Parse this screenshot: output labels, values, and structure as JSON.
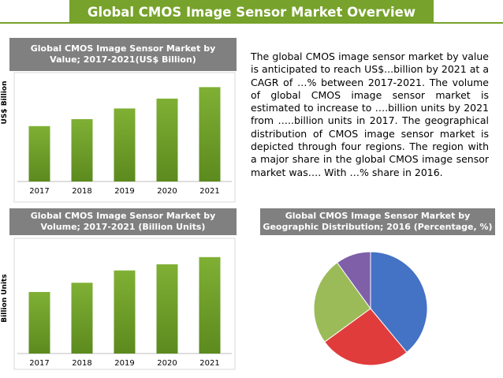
{
  "header": {
    "title": "Global CMOS Image Sensor Market Overview"
  },
  "colors": {
    "banner": "#77a22b",
    "title_box": "#808080",
    "bar": "#77a22b"
  },
  "description": "The global CMOS image sensor market by value is anticipated to reach US$...billion by 2021 at a CAGR of …% between 2017-2021. The volume of global CMOS image sensor market is estimated to increase to ….billion units by 2021 from …..billion units in 2017. The geographical distribution of CMOS image sensor market is depicted through four regions. The region with a major share in the global CMOS image sensor market was…. With …% share in 2016.",
  "chart_data": [
    {
      "type": "bar",
      "title_lines": [
        "Global CMOS Image Sensor Market by",
        "Value; 2017-2021(US$ Billion)"
      ],
      "ylabel": "US$ Billion",
      "categories": [
        "2017",
        "2018",
        "2019",
        "2020",
        "2021"
      ],
      "values": [
        13.5,
        15.2,
        17.8,
        20.2,
        23.0
      ],
      "ylim": [
        0,
        25
      ],
      "grid": false
    },
    {
      "type": "bar",
      "title_lines": [
        "Global CMOS Image Sensor Market by",
        "Volume; 2017-2021 (Billion Units)"
      ],
      "ylabel": "Billion Units",
      "categories": [
        "2017",
        "2018",
        "2019",
        "2020",
        "2021"
      ],
      "values": [
        6.0,
        6.9,
        8.1,
        8.7,
        9.4
      ],
      "ylim": [
        0,
        10
      ],
      "grid": false
    },
    {
      "type": "pie",
      "title_lines": [
        "Global CMOS Image Sensor Market by",
        "Geographic Distribution; 2016 (Percentage, %)"
      ],
      "slices": [
        {
          "value": 39,
          "color": "#4472c4"
        },
        {
          "value": 26,
          "color": "#e03c3c"
        },
        {
          "value": 25,
          "color": "#9bbb59"
        },
        {
          "value": 10,
          "color": "#7f5fa8"
        }
      ]
    }
  ]
}
